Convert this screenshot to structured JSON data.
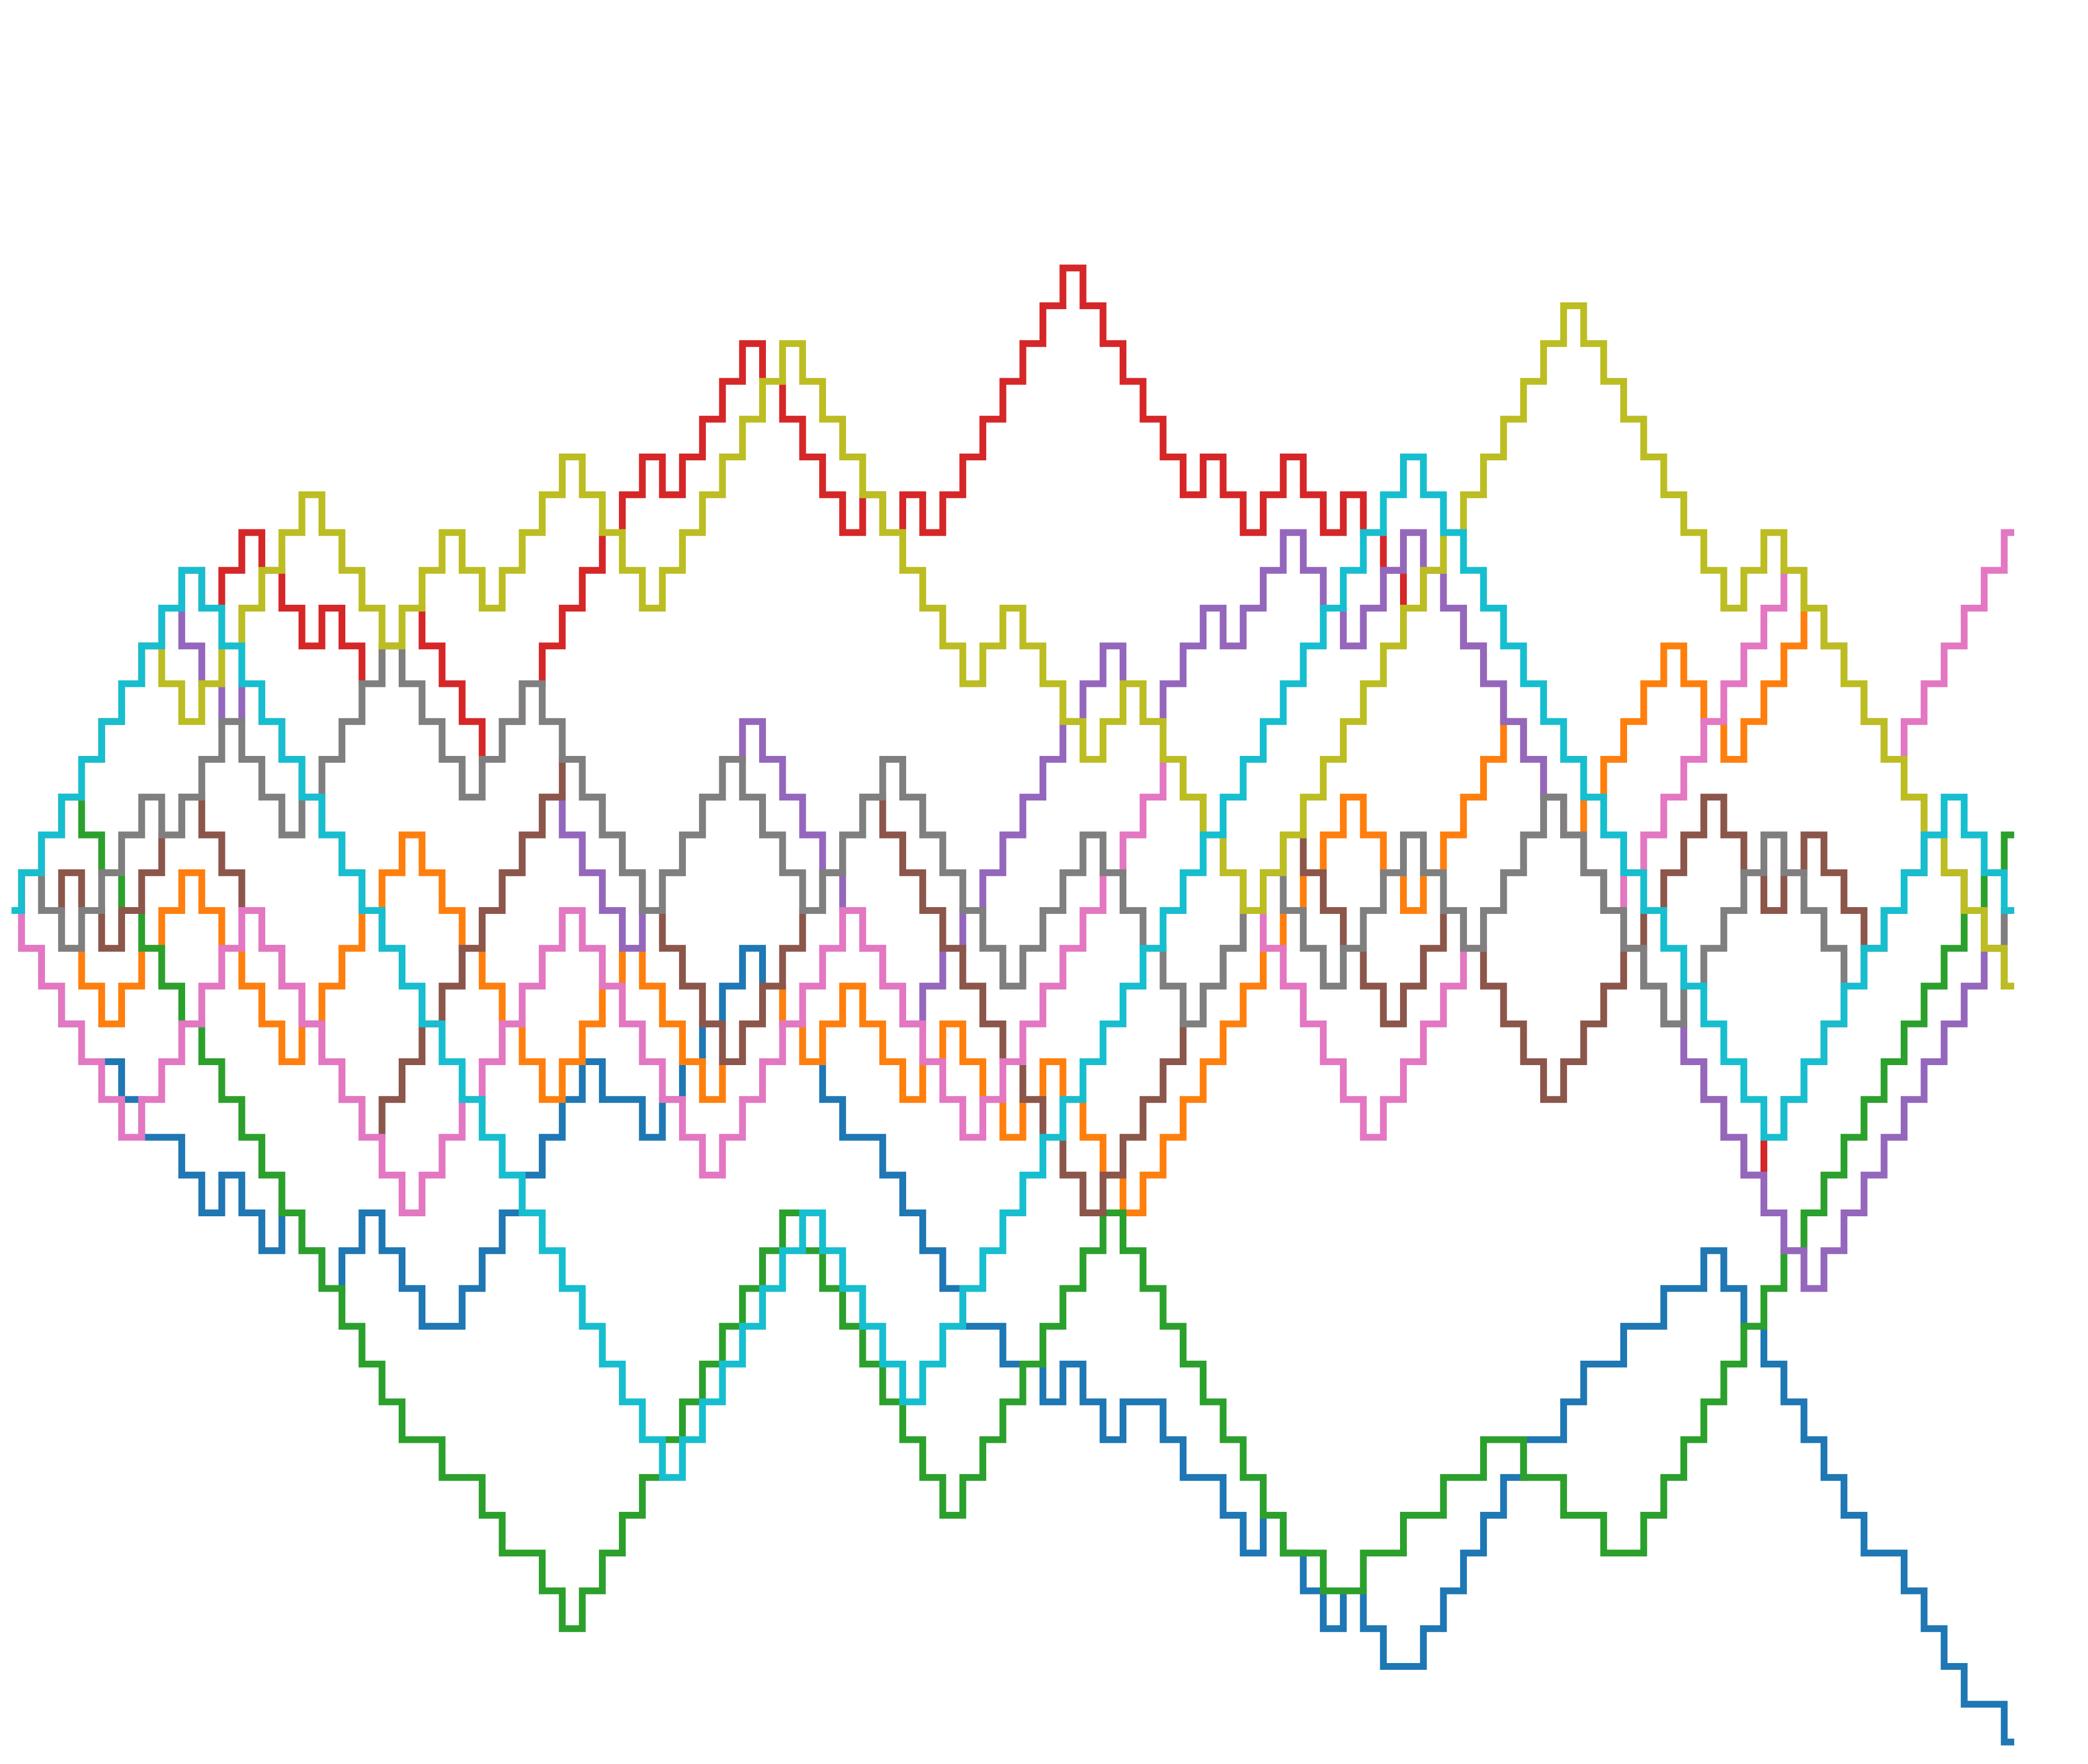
{
  "chart_data": {
    "type": "line",
    "drawstyle": "steps",
    "x_range": [
      0,
      100
    ],
    "y_range": [
      -22,
      18
    ],
    "grid": false,
    "axes_visible": false,
    "legend": "none",
    "series": [
      {
        "color": "#1f77b4",
        "values": [
          0,
          -1,
          -2,
          -3,
          -4,
          -4,
          -5,
          -6,
          -6,
          -7,
          -8,
          -7,
          -8,
          -9,
          -8,
          -9,
          -10,
          -9,
          -8,
          -9,
          -10,
          -11,
          -11,
          -10,
          -9,
          -8,
          -7,
          -6,
          -5,
          -4,
          -5,
          -5,
          -6,
          -5,
          -4,
          -3,
          -2,
          -1,
          -2,
          -3,
          -4,
          -5,
          -6,
          -6,
          -7,
          -8,
          -9,
          -10,
          -11,
          -11,
          -12,
          -12,
          -13,
          -12,
          -13,
          -14,
          -13,
          -13,
          -14,
          -15,
          -15,
          -16,
          -17,
          -16,
          -17,
          -18,
          -19,
          -18,
          -19,
          -20,
          -20,
          -19,
          -18,
          -17,
          -16,
          -15,
          -14,
          -14,
          -13,
          -12,
          -12,
          -11,
          -11,
          -10,
          -10,
          -9,
          -10,
          -11,
          -12,
          -13,
          -14,
          -15,
          -16,
          -17,
          -17,
          -18,
          -19,
          -20,
          -21,
          -21,
          -22
        ]
      },
      {
        "color": "#ff7f0e",
        "values": [
          0,
          1,
          0,
          -1,
          -2,
          -3,
          -2,
          -1,
          0,
          1,
          0,
          -1,
          -2,
          -3,
          -4,
          -3,
          -2,
          -1,
          0,
          1,
          2,
          1,
          0,
          -1,
          -2,
          -3,
          -4,
          -5,
          -4,
          -3,
          -2,
          -1,
          -2,
          -3,
          -4,
          -5,
          -4,
          -3,
          -2,
          -3,
          -4,
          -3,
          -2,
          -3,
          -4,
          -5,
          -4,
          -3,
          -4,
          -5,
          -6,
          -5,
          -4,
          -5,
          -6,
          -7,
          -8,
          -7,
          -6,
          -5,
          -4,
          -3,
          -2,
          -1,
          0,
          1,
          2,
          3,
          2,
          1,
          0,
          1,
          2,
          3,
          4,
          5,
          4,
          3,
          2,
          3,
          4,
          5,
          6,
          7,
          6,
          5,
          4,
          5,
          6,
          7,
          8,
          7,
          6,
          5,
          4,
          3,
          2,
          1,
          0,
          -1,
          -2
        ]
      },
      {
        "color": "#2ca02c",
        "values": [
          0,
          1,
          2,
          3,
          2,
          1,
          0,
          -1,
          -2,
          -3,
          -4,
          -5,
          -6,
          -7,
          -8,
          -9,
          -10,
          -11,
          -12,
          -13,
          -14,
          -14,
          -15,
          -15,
          -16,
          -17,
          -17,
          -18,
          -19,
          -18,
          -17,
          -16,
          -15,
          -14,
          -13,
          -12,
          -11,
          -10,
          -9,
          -8,
          -9,
          -10,
          -11,
          -12,
          -13,
          -14,
          -15,
          -16,
          -15,
          -14,
          -13,
          -12,
          -11,
          -10,
          -9,
          -8,
          -9,
          -10,
          -11,
          -12,
          -13,
          -14,
          -15,
          -16,
          -17,
          -17,
          -18,
          -18,
          -17,
          -17,
          -16,
          -16,
          -15,
          -15,
          -14,
          -14,
          -15,
          -15,
          -16,
          -16,
          -17,
          -17,
          -16,
          -15,
          -14,
          -13,
          -12,
          -11,
          -10,
          -9,
          -8,
          -7,
          -6,
          -5,
          -4,
          -3,
          -2,
          -1,
          0,
          1,
          2
        ]
      },
      {
        "color": "#d62728",
        "values": [
          0,
          1,
          2,
          3,
          4,
          5,
          6,
          7,
          8,
          9,
          8,
          9,
          10,
          9,
          8,
          7,
          8,
          7,
          6,
          7,
          8,
          7,
          6,
          5,
          4,
          5,
          6,
          7,
          8,
          9,
          10,
          11,
          12,
          11,
          12,
          13,
          14,
          15,
          14,
          13,
          12,
          11,
          10,
          11,
          10,
          11,
          10,
          11,
          12,
          13,
          14,
          15,
          16,
          17,
          16,
          15,
          14,
          13,
          12,
          11,
          12,
          11,
          10,
          11,
          12,
          11,
          10,
          11,
          10,
          9,
          8,
          9,
          8,
          7,
          6,
          5,
          4,
          3,
          2,
          1,
          0,
          -1,
          -2,
          -3,
          -4,
          -5,
          -6,
          -7,
          -6,
          -5,
          -4,
          -3,
          -2,
          -1,
          0,
          1,
          2,
          1,
          0,
          -1,
          -2
        ]
      },
      {
        "color": "#9467bd",
        "values": [
          0,
          1,
          2,
          3,
          4,
          5,
          6,
          7,
          8,
          7,
          6,
          5,
          6,
          5,
          4,
          3,
          2,
          1,
          0,
          -1,
          -2,
          -3,
          -2,
          -1,
          0,
          1,
          2,
          3,
          2,
          1,
          0,
          -1,
          0,
          1,
          2,
          3,
          4,
          5,
          4,
          3,
          2,
          1,
          0,
          -1,
          -2,
          -3,
          -2,
          -1,
          0,
          1,
          2,
          3,
          4,
          5,
          6,
          7,
          6,
          5,
          6,
          7,
          8,
          7,
          8,
          9,
          10,
          9,
          8,
          7,
          8,
          9,
          10,
          9,
          8,
          7,
          6,
          5,
          4,
          3,
          2,
          1,
          0,
          -1,
          -2,
          -3,
          -4,
          -5,
          -6,
          -7,
          -8,
          -9,
          -10,
          -9,
          -8,
          -7,
          -6,
          -5,
          -4,
          -3,
          -2,
          -1,
          0
        ]
      },
      {
        "color": "#8c564b",
        "values": [
          0,
          1,
          0,
          1,
          0,
          -1,
          0,
          1,
          2,
          3,
          2,
          1,
          0,
          -1,
          -2,
          -3,
          -4,
          -5,
          -6,
          -5,
          -4,
          -3,
          -2,
          -1,
          0,
          1,
          2,
          3,
          4,
          3,
          2,
          1,
          0,
          -1,
          -2,
          -3,
          -4,
          -3,
          -2,
          -1,
          0,
          1,
          2,
          3,
          2,
          1,
          0,
          -1,
          -2,
          -3,
          -4,
          -5,
          -6,
          -7,
          -8,
          -7,
          -6,
          -5,
          -4,
          -3,
          -2,
          -1,
          0,
          1,
          2,
          1,
          0,
          -1,
          -2,
          -3,
          -2,
          -1,
          0,
          -1,
          -2,
          -3,
          -4,
          -5,
          -4,
          -3,
          -2,
          -1,
          0,
          1,
          2,
          3,
          2,
          1,
          0,
          1,
          2,
          1,
          0,
          -1,
          0,
          1,
          2,
          1,
          0,
          -1,
          -2
        ]
      },
      {
        "color": "#e377c2",
        "values": [
          0,
          -1,
          -2,
          -3,
          -4,
          -5,
          -6,
          -5,
          -4,
          -3,
          -2,
          -1,
          0,
          -1,
          -2,
          -3,
          -4,
          -5,
          -6,
          -7,
          -8,
          -7,
          -6,
          -5,
          -4,
          -3,
          -2,
          -1,
          0,
          -1,
          -2,
          -3,
          -4,
          -5,
          -6,
          -7,
          -6,
          -5,
          -4,
          -3,
          -2,
          -1,
          0,
          -1,
          -2,
          -3,
          -4,
          -5,
          -6,
          -5,
          -4,
          -3,
          -2,
          -1,
          0,
          1,
          2,
          3,
          4,
          3,
          2,
          1,
          0,
          -1,
          -2,
          -3,
          -4,
          -5,
          -6,
          -5,
          -4,
          -3,
          -2,
          -1,
          0,
          1,
          2,
          3,
          2,
          1,
          0,
          1,
          2,
          3,
          4,
          5,
          6,
          7,
          8,
          9,
          8,
          7,
          6,
          5,
          4,
          5,
          6,
          7,
          8,
          9,
          10
        ]
      },
      {
        "color": "#7f7f7f",
        "values": [
          0,
          1,
          0,
          -1,
          0,
          1,
          2,
          3,
          2,
          3,
          4,
          5,
          4,
          3,
          2,
          3,
          4,
          5,
          6,
          7,
          6,
          5,
          4,
          3,
          4,
          5,
          6,
          5,
          4,
          3,
          2,
          1,
          0,
          1,
          2,
          3,
          4,
          3,
          2,
          1,
          0,
          1,
          2,
          3,
          4,
          3,
          2,
          1,
          0,
          -1,
          -2,
          -1,
          0,
          1,
          2,
          1,
          0,
          -1,
          -2,
          -3,
          -2,
          -1,
          0,
          1,
          0,
          -1,
          -2,
          -1,
          0,
          1,
          2,
          1,
          0,
          -1,
          0,
          1,
          2,
          3,
          2,
          1,
          0,
          -1,
          -2,
          -3,
          -2,
          -1,
          0,
          1,
          2,
          1,
          0,
          -1,
          -2,
          -1,
          0,
          1,
          2,
          1,
          0,
          -1,
          0
        ]
      },
      {
        "color": "#bcbd22",
        "values": [
          0,
          1,
          2,
          3,
          4,
          5,
          6,
          7,
          6,
          5,
          6,
          7,
          8,
          9,
          10,
          11,
          10,
          9,
          8,
          7,
          8,
          9,
          10,
          9,
          8,
          9,
          10,
          11,
          12,
          11,
          10,
          9,
          8,
          9,
          10,
          11,
          12,
          13,
          14,
          15,
          14,
          13,
          12,
          11,
          10,
          9,
          8,
          7,
          6,
          7,
          8,
          7,
          6,
          5,
          4,
          5,
          6,
          5,
          4,
          3,
          2,
          1,
          0,
          1,
          2,
          3,
          4,
          5,
          6,
          7,
          8,
          9,
          10,
          11,
          12,
          13,
          14,
          15,
          16,
          15,
          14,
          13,
          12,
          11,
          10,
          9,
          8,
          9,
          10,
          9,
          8,
          7,
          6,
          5,
          4,
          3,
          2,
          1,
          0,
          -1,
          -2
        ]
      },
      {
        "color": "#17becf",
        "values": [
          0,
          1,
          2,
          3,
          4,
          5,
          6,
          7,
          8,
          9,
          8,
          7,
          6,
          5,
          4,
          3,
          2,
          1,
          0,
          -1,
          -2,
          -3,
          -4,
          -5,
          -6,
          -7,
          -8,
          -9,
          -10,
          -11,
          -12,
          -13,
          -14,
          -15,
          -14,
          -13,
          -12,
          -11,
          -10,
          -9,
          -8,
          -9,
          -10,
          -11,
          -12,
          -13,
          -12,
          -11,
          -10,
          -9,
          -8,
          -7,
          -6,
          -5,
          -4,
          -3,
          -2,
          -1,
          0,
          1,
          2,
          3,
          4,
          5,
          6,
          7,
          8,
          9,
          10,
          11,
          12,
          11,
          10,
          9,
          8,
          7,
          6,
          5,
          4,
          3,
          2,
          1,
          0,
          -1,
          -2,
          -3,
          -4,
          -5,
          -6,
          -5,
          -4,
          -3,
          -2,
          -1,
          0,
          1,
          2,
          3,
          2,
          1,
          0
        ]
      }
    ]
  }
}
